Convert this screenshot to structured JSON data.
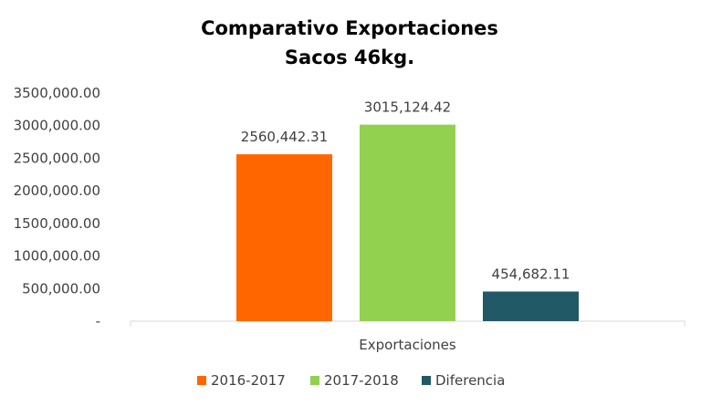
{
  "chart_data": {
    "type": "bar",
    "title": "Comparativo Exportaciones",
    "subtitle": "Sacos 46kg.",
    "categories": [
      "Exportaciones"
    ],
    "series": [
      {
        "name": "2016-2017",
        "values": [
          2560442.31
        ],
        "label": "2560,442.31",
        "color": "#FF6600"
      },
      {
        "name": "2017-2018",
        "values": [
          3015124.42
        ],
        "label": "3015,124.42",
        "color": "#92D050"
      },
      {
        "name": "Diferencia",
        "values": [
          454682.11
        ],
        "label": "454,682.11",
        "color": "#215967"
      }
    ],
    "ylim": [
      0,
      3500000
    ],
    "yticks": [
      {
        "value": 0,
        "label": "-"
      },
      {
        "value": 500000,
        "label": "500,000.00"
      },
      {
        "value": 1000000,
        "label": "1000,000.00"
      },
      {
        "value": 1500000,
        "label": "1500,000.00"
      },
      {
        "value": 2000000,
        "label": "2000,000.00"
      },
      {
        "value": 2500000,
        "label": "2500,000.00"
      },
      {
        "value": 3000000,
        "label": "3000,000.00"
      },
      {
        "value": 3500000,
        "label": "3500,000.00"
      }
    ],
    "grid": false,
    "legend": "bottom",
    "axis_color": "#D9D9D9"
  }
}
